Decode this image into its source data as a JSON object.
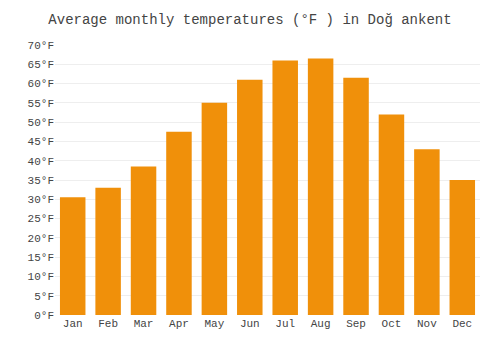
{
  "chart_data": {
    "type": "bar",
    "title": "Average monthly temperatures (°F ) in Doğ ankent",
    "categories": [
      "Jan",
      "Feb",
      "Mar",
      "Apr",
      "May",
      "Jun",
      "Jul",
      "Aug",
      "Sep",
      "Oct",
      "Nov",
      "Dec"
    ],
    "values": [
      30.5,
      33.0,
      38.5,
      47.5,
      55.0,
      61.0,
      66.0,
      66.5,
      61.5,
      52.0,
      43.0,
      35.0
    ],
    "color": "#F0900A",
    "ylim": [
      0,
      70
    ],
    "yticks": [
      {
        "value": 0,
        "label": "0°F"
      },
      {
        "value": 5,
        "label": "5°F"
      },
      {
        "value": 10,
        "label": "10°F"
      },
      {
        "value": 15,
        "label": "15°F"
      },
      {
        "value": 20,
        "label": "20°F"
      },
      {
        "value": 25,
        "label": "25°F"
      },
      {
        "value": 30,
        "label": "30°F"
      },
      {
        "value": 35,
        "label": "35°F"
      },
      {
        "value": 40,
        "label": "40°F"
      },
      {
        "value": 45,
        "label": "45°F"
      },
      {
        "value": 50,
        "label": "50°F"
      },
      {
        "value": 55,
        "label": "55°F"
      },
      {
        "value": 60,
        "label": "60°F"
      },
      {
        "value": 65,
        "label": "65°F"
      },
      {
        "value": 70,
        "label": "70°F"
      }
    ],
    "grid": true
  }
}
